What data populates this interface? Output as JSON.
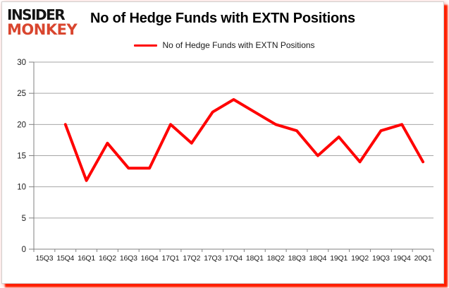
{
  "logo": {
    "line1": "INSIDER",
    "line2": "MONKEY",
    "accent_color": "#d9462f"
  },
  "header": {
    "title": "No of Hedge Funds with EXTN Positions"
  },
  "legend": {
    "label": "No of Hedge Funds with EXTN Positions",
    "swatch_color": "#ff0000"
  },
  "chart_data": {
    "type": "line",
    "title": "No of Hedge Funds with EXTN Positions",
    "categories": [
      "15Q3",
      "15Q4",
      "16Q1",
      "16Q2",
      "16Q3",
      "16Q4",
      "17Q1",
      "17Q2",
      "17Q3",
      "17Q4",
      "18Q1",
      "18Q2",
      "18Q3",
      "18Q4",
      "19Q1",
      "19Q2",
      "19Q3",
      "19Q4",
      "20Q1"
    ],
    "series": [
      {
        "name": "No of Hedge Funds with EXTN Positions",
        "color": "#ff0000",
        "values": [
          null,
          20,
          11,
          17,
          13,
          13,
          20,
          17,
          22,
          24,
          22,
          20,
          19,
          15,
          18,
          14,
          19,
          20,
          14
        ]
      }
    ],
    "xlabel": "",
    "ylabel": "",
    "ylim": [
      0,
      30
    ],
    "ytick_step": 5,
    "grid": true,
    "legend_position": "top"
  },
  "colors": {
    "grid": "#a6a6a6",
    "axis": "#808080",
    "tick_label": "#1a1a1a",
    "frame_shadow": "#ff1f00"
  }
}
